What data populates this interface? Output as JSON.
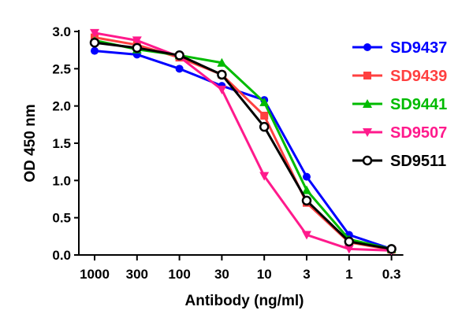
{
  "chart_data": {
    "type": "line",
    "xlabel": "Antibody (ng/ml)",
    "ylabel": "OD 450 nm",
    "categories": [
      "1000",
      "300",
      "100",
      "30",
      "10",
      "3",
      "1",
      "0.3"
    ],
    "ylim": [
      0,
      3.0
    ],
    "yticks": [
      "0.0",
      "0.5",
      "1.0",
      "1.5",
      "2.0",
      "2.5",
      "3.0"
    ],
    "grid": false,
    "legend_position": "right",
    "series": [
      {
        "name": "SD9437",
        "color": "#0000ff",
        "marker": "circle",
        "values": [
          2.74,
          2.69,
          2.5,
          2.27,
          2.08,
          1.05,
          0.27,
          0.08
        ]
      },
      {
        "name": "SD9439",
        "color": "#ff4040",
        "marker": "square",
        "values": [
          2.92,
          2.82,
          2.65,
          2.42,
          1.87,
          0.7,
          0.17,
          0.07
        ]
      },
      {
        "name": "SD9441",
        "color": "#00bb00",
        "marker": "triangle-up",
        "values": [
          2.88,
          2.76,
          2.68,
          2.58,
          2.05,
          0.87,
          0.21,
          0.08
        ]
      },
      {
        "name": "SD9507",
        "color": "#ff1a8c",
        "marker": "triangle-down",
        "values": [
          2.98,
          2.88,
          2.66,
          2.22,
          1.06,
          0.27,
          0.08,
          0.06
        ]
      },
      {
        "name": "SD9511",
        "color": "#000000",
        "marker": "open-circle",
        "values": [
          2.85,
          2.78,
          2.68,
          2.42,
          1.72,
          0.73,
          0.18,
          0.08
        ]
      }
    ]
  }
}
